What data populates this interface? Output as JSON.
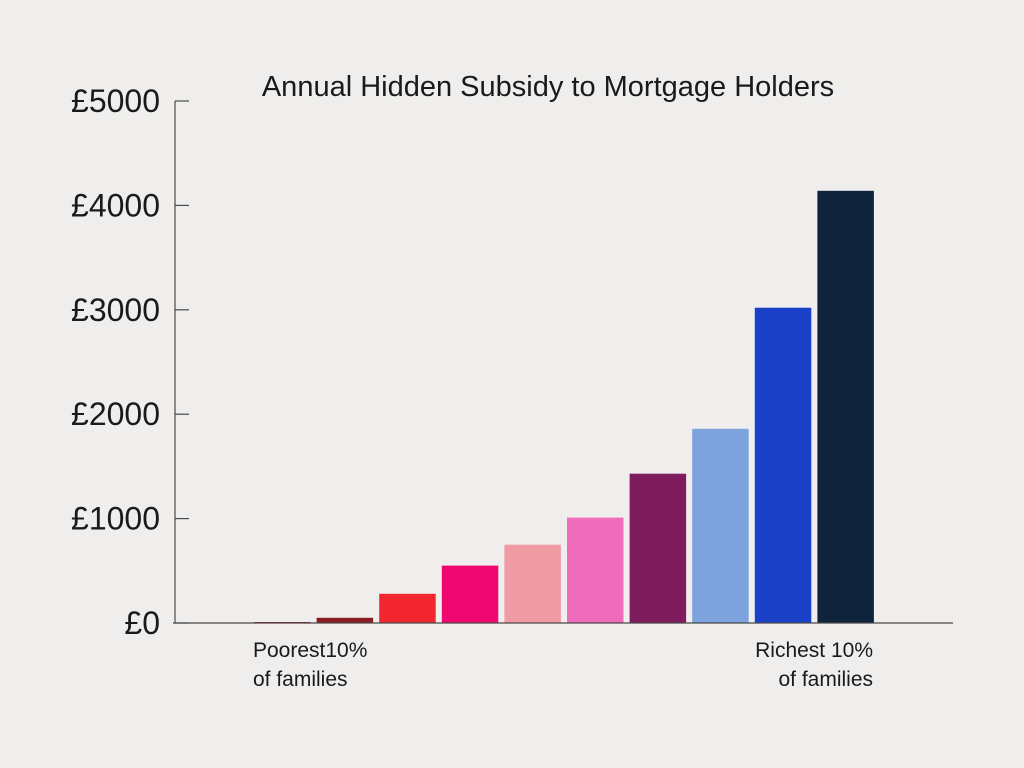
{
  "chart_data": {
    "type": "bar",
    "title": "Annual Hidden Subsidy to Mortgage Holders",
    "xlabel": "",
    "ylabel": "",
    "ylim": [
      0,
      5000
    ],
    "y_ticks": [
      0,
      1000,
      2000,
      3000,
      4000,
      5000
    ],
    "y_tick_labels": [
      "£0",
      "£1000",
      "£2000",
      "£3000",
      "£4000",
      "£5000"
    ],
    "grid": false,
    "legend": "none",
    "values": [
      10,
      50,
      280,
      550,
      750,
      1010,
      1430,
      1860,
      3020,
      4140
    ],
    "colors": [
      "#b5121b",
      "#8b1a22",
      "#f2262e",
      "#f0066f",
      "#f09aa4",
      "#ef6cbb",
      "#7e1c5e",
      "#7ea3dc",
      "#1b40c8",
      "#0f233d"
    ],
    "annotations": {
      "poorest_line1": "Poorest10%",
      "poorest_line2": "of families",
      "richest_line1": "Richest 10%",
      "richest_line2": "of families"
    }
  }
}
